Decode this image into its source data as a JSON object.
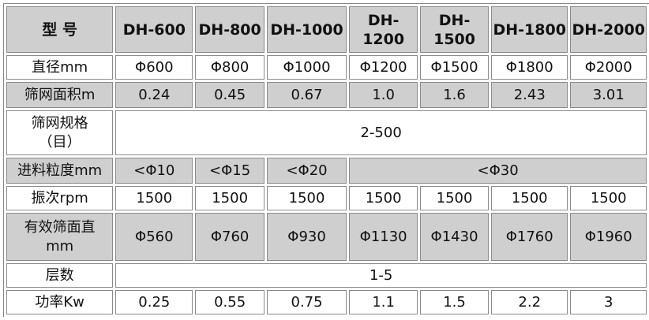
{
  "header": {
    "label": "型 号",
    "models": [
      "DH-600",
      "DH-800",
      "DH-1000",
      "DH-1200",
      "DH-1500",
      "DH-1800",
      "DH-2000"
    ]
  },
  "rows": {
    "diameter": {
      "label": "直径mm",
      "values": [
        "Φ600",
        "Φ800",
        "Φ1000",
        "Φ1200",
        "Φ1500",
        "Φ1800",
        "Φ2000"
      ]
    },
    "area": {
      "label": "筛网面积m",
      "values": [
        "0.24",
        "0.45",
        "0.67",
        "1.0",
        "1.6",
        "2.43",
        "3.01"
      ]
    },
    "mesh": {
      "label": "筛网规格（目）",
      "value": "2-500"
    },
    "feed": {
      "label": "进料粒度mm",
      "values": [
        "<Φ10",
        "<Φ15",
        "<Φ20",
        "<Φ30"
      ]
    },
    "vibration": {
      "label": "振次rpm",
      "values": [
        "1500",
        "1500",
        "1500",
        "1500",
        "1500",
        "1500",
        "1500"
      ]
    },
    "effective": {
      "label": "有效筛面直mm",
      "values": [
        "Φ560",
        "Φ760",
        "Φ930",
        "Φ1130",
        "Φ1430",
        "Φ1760",
        "Φ1960"
      ]
    },
    "layers": {
      "label": "层数",
      "value": "1-5"
    },
    "power": {
      "label": "功率Kw",
      "values": [
        "0.25",
        "0.55",
        "0.75",
        "1.1",
        "1.5",
        "2.2",
        "3"
      ]
    }
  }
}
